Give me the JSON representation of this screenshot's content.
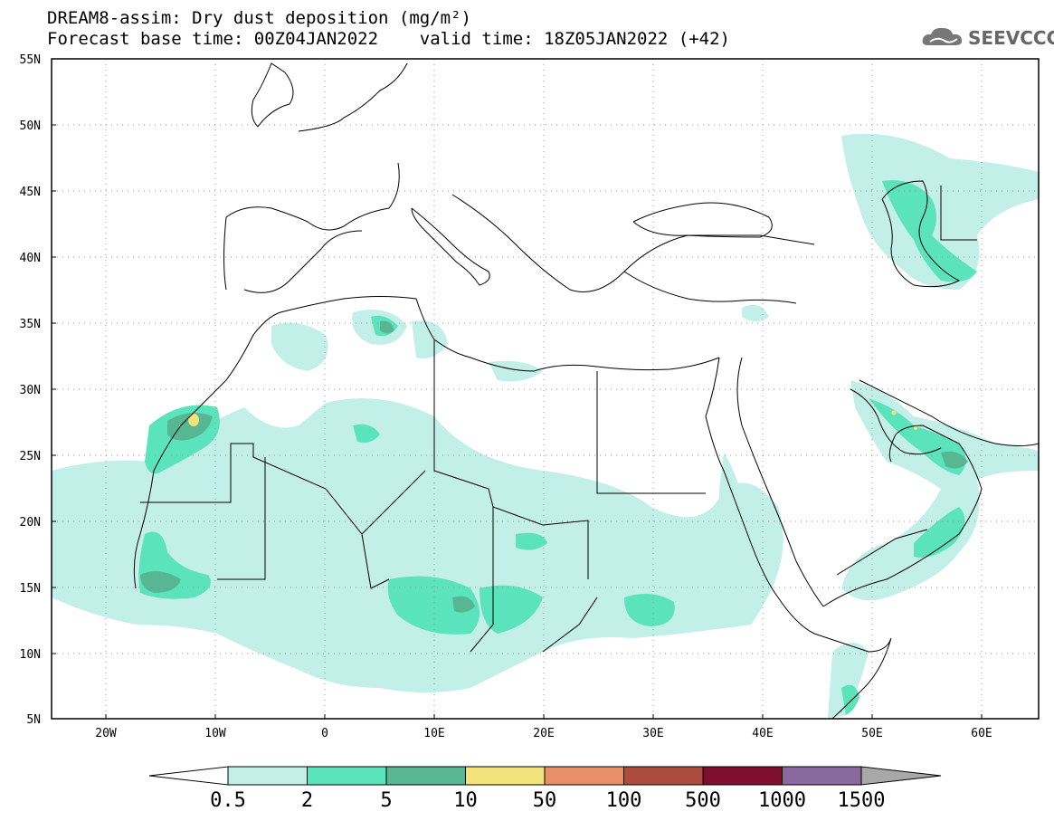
{
  "title": {
    "line1": "DREAM8-assim: Dry dust deposition (mg/m²)",
    "line2": "Forecast base time: 00Z04JAN2022    valid time: 18Z05JAN2022 (+42)"
  },
  "logo": {
    "text": "SEEVCCC",
    "icon": "cloud-logo-icon"
  },
  "map": {
    "lon_range": [
      -25,
      65
    ],
    "lat_range": [
      5,
      55
    ],
    "lat_labels": [
      "55N",
      "50N",
      "45N",
      "40N",
      "35N",
      "30N",
      "25N",
      "20N",
      "15N",
      "10N",
      "5N"
    ],
    "lon_labels": [
      "20W",
      "10W",
      "0",
      "10E",
      "20E",
      "30E",
      "40E",
      "50E",
      "60E"
    ],
    "gridlines": true
  },
  "colorbar": {
    "labels": [
      "0.5",
      "2",
      "5",
      "10",
      "50",
      "100",
      "500",
      "1000",
      "1500"
    ],
    "colors": [
      "#c2efe7",
      "#5be3bc",
      "#57b693",
      "#f2e37a",
      "#e98f68",
      "#ad4b3f",
      "#7f0d2d",
      "#8a6a9e"
    ],
    "low_color": "#ffffff",
    "high_color": "#a8a8a8"
  }
}
